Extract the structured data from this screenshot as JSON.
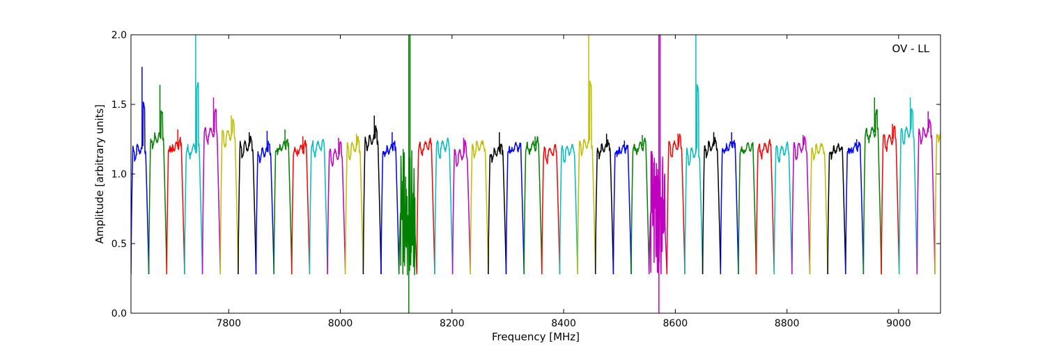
{
  "chart_data": {
    "type": "line",
    "annotation": "OV - LL",
    "xlabel": "Frequency [MHz]",
    "ylabel": "Amplitude [arbitrary units]",
    "xlim": [
      7625,
      9075
    ],
    "ylim": [
      0.0,
      2.0
    ],
    "x_ticks": [
      7800,
      8000,
      8200,
      8400,
      8600,
      8800,
      9000
    ],
    "y_ticks": [
      "0.0",
      "0.5",
      "1.0",
      "1.5",
      "2.0"
    ],
    "grid": false,
    "legend": "none",
    "channel_width_mhz": 32,
    "band_edge_min": 0.28,
    "background_trace_color": "#bfbfbf",
    "color_cycle": [
      "#0000ff",
      "#008000",
      "#ff0000",
      "#00bfbf",
      "#bf00bf",
      "#bfbf00",
      "#000000"
    ],
    "series": [
      {
        "start": 7625,
        "color": "#0000ff",
        "level": 1.18,
        "peak": 1.77
      },
      {
        "start": 7657,
        "color": "#008000",
        "level": 1.26,
        "peak": 1.64
      },
      {
        "start": 7689,
        "color": "#ff0000",
        "level": 1.2,
        "peak": 1.32
      },
      {
        "start": 7721,
        "color": "#00bfbf",
        "level": 1.18,
        "peak": 2.0
      },
      {
        "start": 7753,
        "color": "#bf00bf",
        "level": 1.3,
        "peak": 1.55
      },
      {
        "start": 7785,
        "color": "#bfbf00",
        "level": 1.28,
        "peak": 1.42
      },
      {
        "start": 7817,
        "color": "#000000",
        "level": 1.2,
        "peak": 1.3
      },
      {
        "start": 7849,
        "color": "#0000ff",
        "level": 1.16,
        "peak": 1.31
      },
      {
        "start": 7881,
        "color": "#008000",
        "level": 1.2,
        "peak": 1.32
      },
      {
        "start": 7913,
        "color": "#ff0000",
        "level": 1.18,
        "peak": 1.27
      },
      {
        "start": 7945,
        "color": "#00bfbf",
        "level": 1.2,
        "peak": 1.24
      },
      {
        "start": 7977,
        "color": "#bf00bf",
        "level": 1.14,
        "peak": 1.26
      },
      {
        "start": 8009,
        "color": "#bfbf00",
        "level": 1.19,
        "peak": 1.29
      },
      {
        "start": 8041,
        "color": "#000000",
        "level": 1.25,
        "peak": 1.42
      },
      {
        "start": 8073,
        "color": "#0000ff",
        "level": 1.18,
        "peak": 1.3
      },
      {
        "start": 8105,
        "color": "#008000",
        "level": 0.8,
        "peak": 2.0
      },
      {
        "start": 8137,
        "color": "#ff0000",
        "level": 1.2,
        "peak": 1.24
      },
      {
        "start": 8169,
        "color": "#00bfbf",
        "level": 1.2,
        "peak": 1.24
      },
      {
        "start": 8201,
        "color": "#bf00bf",
        "level": 1.14,
        "peak": 1.26
      },
      {
        "start": 8233,
        "color": "#bfbf00",
        "level": 1.2,
        "peak": 1.24
      },
      {
        "start": 8265,
        "color": "#000000",
        "level": 1.16,
        "peak": 1.3
      },
      {
        "start": 8297,
        "color": "#0000ff",
        "level": 1.19,
        "peak": 1.23
      },
      {
        "start": 8329,
        "color": "#008000",
        "level": 1.2,
        "peak": 1.27
      },
      {
        "start": 8361,
        "color": "#ff0000",
        "level": 1.16,
        "peak": 1.19
      },
      {
        "start": 8393,
        "color": "#00bfbf",
        "level": 1.17,
        "peak": 1.2
      },
      {
        "start": 8425,
        "color": "#bfbf00",
        "level": 1.22,
        "peak": 2.0
      },
      {
        "start": 8457,
        "color": "#000000",
        "level": 1.19,
        "peak": 1.29
      },
      {
        "start": 8489,
        "color": "#0000ff",
        "level": 1.18,
        "peak": 1.24
      },
      {
        "start": 8521,
        "color": "#008000",
        "level": 1.2,
        "peak": 1.28
      },
      {
        "start": 8553,
        "color": "#bf00bf",
        "level": 0.8,
        "peak": 2.0
      },
      {
        "start": 8585,
        "color": "#ff0000",
        "level": 1.2,
        "peak": 1.29
      },
      {
        "start": 8617,
        "color": "#00bfbf",
        "level": 1.15,
        "peak": 2.0
      },
      {
        "start": 8649,
        "color": "#000000",
        "level": 1.2,
        "peak": 1.3
      },
      {
        "start": 8681,
        "color": "#0000ff",
        "level": 1.2,
        "peak": 1.3
      },
      {
        "start": 8713,
        "color": "#008000",
        "level": 1.19,
        "peak": 1.21
      },
      {
        "start": 8745,
        "color": "#ff0000",
        "level": 1.19,
        "peak": 1.23
      },
      {
        "start": 8777,
        "color": "#00bfbf",
        "level": 1.17,
        "peak": 1.21
      },
      {
        "start": 8809,
        "color": "#bf00bf",
        "level": 1.19,
        "peak": 1.28
      },
      {
        "start": 8841,
        "color": "#bfbf00",
        "level": 1.18,
        "peak": 1.22
      },
      {
        "start": 8873,
        "color": "#000000",
        "level": 1.18,
        "peak": 1.23
      },
      {
        "start": 8905,
        "color": "#0000ff",
        "level": 1.19,
        "peak": 1.25
      },
      {
        "start": 8937,
        "color": "#008000",
        "level": 1.3,
        "peak": 1.55
      },
      {
        "start": 8969,
        "color": "#ff0000",
        "level": 1.25,
        "peak": 1.36
      },
      {
        "start": 9001,
        "color": "#00bfbf",
        "level": 1.3,
        "peak": 1.55
      },
      {
        "start": 9033,
        "color": "#bf00bf",
        "level": 1.3,
        "peak": 1.45
      },
      {
        "start": 9065,
        "color": "#bfbf00",
        "level": 1.3,
        "peak": 1.37
      }
    ]
  }
}
